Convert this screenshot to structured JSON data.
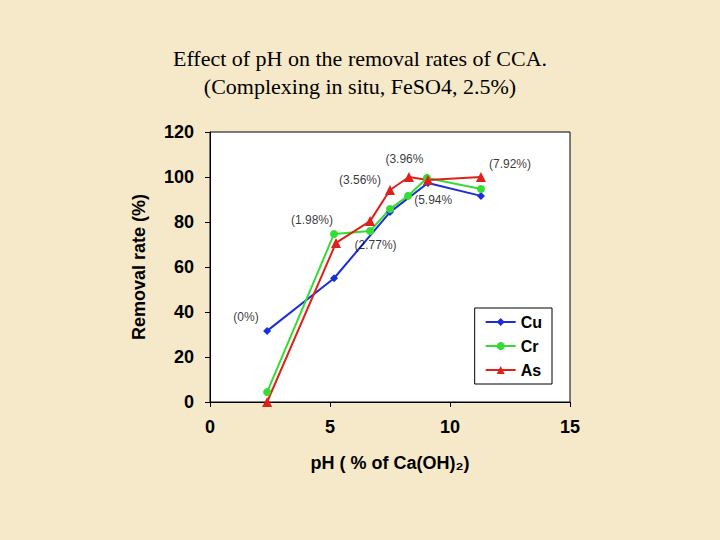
{
  "chart_data": {
    "type": "line",
    "title": "Effect of pH on the removal rates of CCA.",
    "subtitle": "(Complexing in situ, FeSO4, 2.5%)",
    "x_label": "pH ( % of Ca(OH)₂)",
    "y_label": "Removal rate (%)",
    "xlim": [
      0,
      15
    ],
    "xticks": [
      0,
      5,
      10,
      15
    ],
    "ylim": [
      0,
      120
    ],
    "yticks": [
      0,
      20,
      40,
      60,
      80,
      100,
      120
    ],
    "grid": false,
    "legend": "lower right",
    "series": [
      {
        "name": "Cu",
        "color": "#1a2fd6",
        "marker": "diamond",
        "x": [
          2.38,
          5.17,
          7.5,
          9.08,
          11.29
        ],
        "values": [
          31.6,
          55,
          84.4,
          97.3,
          91.6
        ]
      },
      {
        "name": "Cr",
        "color": "#33dd33",
        "marker": "circle",
        "x": [
          2.38,
          5.17,
          6.67,
          7.5,
          8.25,
          9.04,
          11.29
        ],
        "values": [
          4.4,
          74.7,
          76,
          85.8,
          91.6,
          99.6,
          94.7
        ]
      },
      {
        "name": "As",
        "color": "#e0201a",
        "marker": "triangle",
        "x": [
          2.38,
          5.25,
          6.67,
          7.5,
          8.29,
          9.08,
          11.29
        ],
        "values": [
          0,
          70.7,
          80.4,
          94.2,
          100,
          98.7,
          100
        ]
      }
    ],
    "annotations": [
      {
        "text": "(0%)",
        "x": 1.5,
        "y": 37.8
      },
      {
        "text": "(1.98%)",
        "x": 4.25,
        "y": 81
      },
      {
        "text": "(2.77%)",
        "x": 6.9,
        "y": 70
      },
      {
        "text": "(3.56%)",
        "x": 6.25,
        "y": 98.7
      },
      {
        "text": "(3.96%",
        "x": 8.1,
        "y": 108
      },
      {
        "text": "(5.94%",
        "x": 9.3,
        "y": 90
      },
      {
        "text": "(7.92%)",
        "x": 12.5,
        "y": 106
      }
    ]
  }
}
